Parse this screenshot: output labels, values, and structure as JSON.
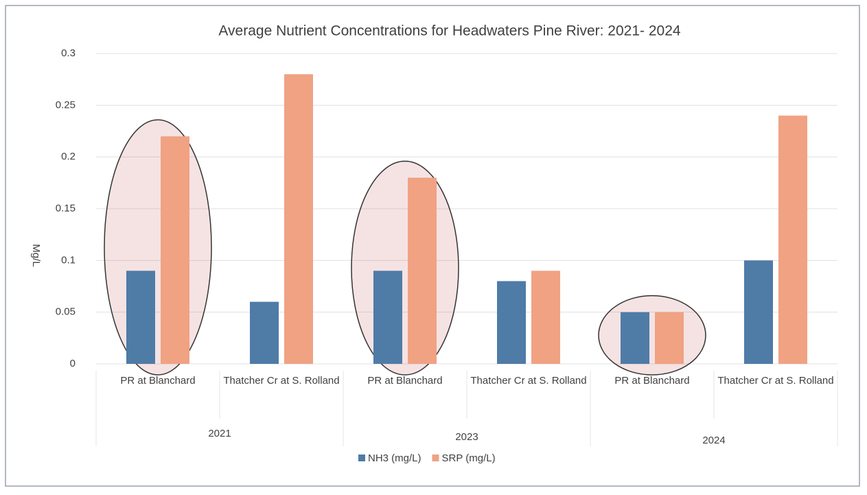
{
  "chart_data": {
    "type": "bar",
    "title": "Average Nutrient Concentrations for Headwaters Pine River: 2021- 2024",
    "y_label": "Mg/L",
    "categories": [
      "PR at Blanchard",
      "Thatcher Cr at S. Rolland",
      "PR at Blanchard",
      "Thatcher Cr at S. Rolland",
      "PR at Blanchard",
      "Thatcher Cr at S. Rolland"
    ],
    "category_groups": [
      "2021",
      "2023",
      "2024"
    ],
    "series": [
      {
        "name": "NH3 (mg/L)",
        "color": "#4f7ba7",
        "values": [
          0.09,
          0.06,
          0.09,
          0.08,
          0.05,
          0.1
        ]
      },
      {
        "name": "SRP (mg/L)",
        "color": "#f0a283",
        "values": [
          0.22,
          0.28,
          0.18,
          0.09,
          0.05,
          0.24
        ]
      }
    ],
    "ylim": [
      0,
      0.3
    ],
    "yticks": [
      0,
      0.05,
      0.1,
      0.15,
      0.2,
      0.25,
      0.3
    ],
    "grid": true,
    "legend": "bottom"
  }
}
